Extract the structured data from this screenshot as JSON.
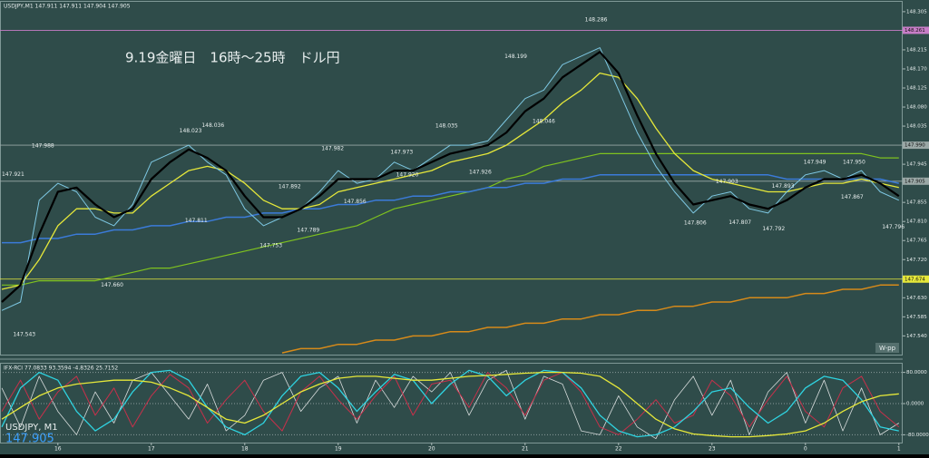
{
  "chart_data": [
    {
      "type": "line",
      "header": "USDJPY,M1  147.911 147.911 147.904 147.905",
      "title": "9.19金曜日　16時～25時　ドル円",
      "symbol": "USDJPY, M1",
      "price": "147.905",
      "marker": "W-pp",
      "categories": [
        null,
        null,
        null,
        "16",
        null,
        null,
        null,
        null,
        "17",
        null,
        null,
        null,
        null,
        "18",
        null,
        null,
        null,
        null,
        "19",
        null,
        null,
        null,
        null,
        "20",
        null,
        null,
        null,
        null,
        "21",
        null,
        null,
        null,
        null,
        "22",
        null,
        null,
        null,
        null,
        "23",
        null,
        null,
        null,
        null,
        "0",
        null,
        null,
        null,
        null,
        "1"
      ],
      "ylim": [
        147.498,
        148.324
      ],
      "yticks": [
        148.305,
        148.215,
        {
          "value": 148.17,
          "label": "148.170"
        },
        148.125,
        {
          "value": 148.08,
          "label": "148.080"
        },
        148.035,
        147.945,
        147.855,
        {
          "value": 147.81,
          "label": "147.810"
        },
        147.765,
        {
          "value": 147.72,
          "label": "147.720"
        },
        {
          "value": 147.63,
          "label": "147.630"
        },
        147.585,
        {
          "value": 147.54,
          "label": "147.540"
        }
      ],
      "levels": [
        {
          "value": 148.261,
          "label": "148.261",
          "color": "#c77dc7"
        },
        {
          "value": 147.99,
          "label": "147.990",
          "color": "#9aa8a6"
        },
        {
          "value": 147.905,
          "label": "147.905",
          "color": "#9aa8a6"
        },
        {
          "value": 147.674,
          "label": "147.674",
          "color": "#e6e83a"
        }
      ],
      "series": [
        {
          "color": "#7fc21f",
          "width": 1.2,
          "values": [
            147.66,
            147.66,
            147.67,
            147.67,
            147.67,
            147.67,
            147.68,
            147.69,
            147.7,
            147.7,
            147.71,
            147.72,
            147.73,
            147.74,
            147.75,
            147.76,
            147.77,
            147.78,
            147.79,
            147.8,
            147.82,
            147.84,
            147.85,
            147.86,
            147.87,
            147.88,
            147.89,
            147.91,
            147.92,
            147.94,
            147.95,
            147.96,
            147.97,
            147.97,
            147.97,
            147.97,
            147.97,
            147.97,
            147.97,
            147.97,
            147.97,
            147.97,
            147.97,
            147.97,
            147.97,
            147.97,
            147.97,
            147.96,
            147.96
          ]
        },
        {
          "color": "#d68a1a",
          "width": 1.5,
          "values": [
            null,
            null,
            null,
            null,
            null,
            null,
            null,
            null,
            null,
            null,
            null,
            null,
            null,
            null,
            null,
            147.5,
            147.51,
            147.51,
            147.52,
            147.52,
            147.53,
            147.53,
            147.54,
            147.54,
            147.55,
            147.55,
            147.56,
            147.56,
            147.57,
            147.57,
            147.58,
            147.58,
            147.59,
            147.59,
            147.6,
            147.6,
            147.61,
            147.61,
            147.62,
            147.62,
            147.63,
            147.63,
            147.63,
            147.64,
            147.64,
            147.65,
            147.65,
            147.66,
            147.66
          ]
        },
        {
          "color": "#3b7bd9",
          "width": 1.5,
          "values": [
            147.76,
            147.76,
            147.77,
            147.77,
            147.78,
            147.78,
            147.79,
            147.79,
            147.8,
            147.8,
            147.81,
            147.81,
            147.82,
            147.82,
            147.83,
            147.83,
            147.84,
            147.84,
            147.85,
            147.85,
            147.86,
            147.86,
            147.87,
            147.87,
            147.88,
            147.88,
            147.89,
            147.89,
            147.9,
            147.9,
            147.91,
            147.91,
            147.92,
            147.92,
            147.92,
            147.92,
            147.92,
            147.92,
            147.92,
            147.92,
            147.92,
            147.92,
            147.91,
            147.91,
            147.91,
            147.91,
            147.91,
            147.91,
            147.9
          ]
        },
        {
          "color": "#e6e83a",
          "width": 1.3,
          "values": [
            147.65,
            147.66,
            147.72,
            147.8,
            147.84,
            147.84,
            147.83,
            147.83,
            147.87,
            147.9,
            147.93,
            147.94,
            147.93,
            147.9,
            147.86,
            147.84,
            147.84,
            147.85,
            147.88,
            147.89,
            147.9,
            147.91,
            147.92,
            147.93,
            147.95,
            147.96,
            147.97,
            147.99,
            148.02,
            148.05,
            148.09,
            148.12,
            148.16,
            148.15,
            148.1,
            148.03,
            147.97,
            147.93,
            147.91,
            147.9,
            147.89,
            147.88,
            147.88,
            147.89,
            147.9,
            147.9,
            147.91,
            147.9,
            147.89
          ]
        },
        {
          "color": "#7ec8e3",
          "width": 1,
          "values": [
            147.6,
            147.62,
            147.86,
            147.9,
            147.88,
            147.82,
            147.8,
            147.85,
            147.95,
            147.97,
            147.99,
            147.95,
            147.92,
            147.84,
            147.8,
            147.82,
            147.84,
            147.88,
            147.93,
            147.9,
            147.91,
            147.95,
            147.93,
            147.96,
            147.99,
            147.99,
            148.0,
            148.05,
            148.1,
            148.12,
            148.18,
            148.2,
            148.22,
            148.12,
            148.02,
            147.94,
            147.88,
            147.83,
            147.87,
            147.88,
            147.84,
            147.83,
            147.88,
            147.92,
            147.93,
            147.91,
            147.93,
            147.88,
            147.86
          ]
        },
        {
          "color": "#000000",
          "width": 2.2,
          "values": [
            147.62,
            147.66,
            147.78,
            147.88,
            147.89,
            147.85,
            147.82,
            147.84,
            147.91,
            147.95,
            147.98,
            147.96,
            147.93,
            147.87,
            147.82,
            147.82,
            147.84,
            147.87,
            147.91,
            147.91,
            147.91,
            147.93,
            147.93,
            147.95,
            147.97,
            147.98,
            147.99,
            148.02,
            148.07,
            148.1,
            148.15,
            148.18,
            148.21,
            148.16,
            148.06,
            147.97,
            147.9,
            147.85,
            147.86,
            147.87,
            147.85,
            147.84,
            147.86,
            147.89,
            147.91,
            147.91,
            147.92,
            147.9,
            147.87
          ]
        }
      ],
      "annotations": [
        {
          "x": 2.2,
          "value": 147.988,
          "label": "147.988"
        },
        {
          "x": 0.6,
          "value": 147.921,
          "label": "147.921"
        },
        {
          "x": 10.1,
          "value": 148.023,
          "label": "148.023"
        },
        {
          "x": 11.3,
          "value": 148.036,
          "label": "148.036"
        },
        {
          "x": 17.7,
          "value": 147.982,
          "label": "147.982"
        },
        {
          "x": 21.4,
          "value": 147.973,
          "label": "147.973"
        },
        {
          "x": 23.8,
          "value": 148.035,
          "label": "148.035"
        },
        {
          "x": 27.5,
          "value": 148.199,
          "label": "148.199"
        },
        {
          "x": 31.8,
          "value": 148.286,
          "label": "148.286"
        },
        {
          "x": 29.0,
          "value": 148.046,
          "label": "148.046"
        },
        {
          "x": 15.4,
          "value": 147.892,
          "label": "147.892"
        },
        {
          "x": 21.7,
          "value": 147.92,
          "label": "147.920"
        },
        {
          "x": 25.6,
          "value": 147.926,
          "label": "147.926"
        },
        {
          "x": 18.9,
          "value": 147.856,
          "label": "147.856"
        },
        {
          "x": 10.4,
          "value": 147.811,
          "label": "147.811"
        },
        {
          "x": 16.4,
          "value": 147.789,
          "label": "147.789"
        },
        {
          "x": 14.4,
          "value": 147.753,
          "label": "147.753"
        },
        {
          "x": 5.9,
          "value": 147.66,
          "label": "147.660"
        },
        {
          "x": 1.2,
          "value": 147.543,
          "label": "147.543"
        },
        {
          "x": 37.1,
          "value": 147.806,
          "label": "147.806"
        },
        {
          "x": 39.5,
          "value": 147.807,
          "label": "147.807"
        },
        {
          "x": 41.3,
          "value": 147.792,
          "label": "147.792"
        },
        {
          "x": 38.8,
          "value": 147.903,
          "label": "147.903"
        },
        {
          "x": 41.8,
          "value": 147.893,
          "label": "147.893"
        },
        {
          "x": 43.5,
          "value": 147.949,
          "label": "147.949"
        },
        {
          "x": 45.6,
          "value": 147.95,
          "label": "147.950"
        },
        {
          "x": 45.5,
          "value": 147.867,
          "label": "147.867"
        },
        {
          "x": 47.7,
          "value": 147.796,
          "label": "147.796"
        }
      ]
    },
    {
      "type": "line",
      "title": "IFX-RCI 77.0833 93.3594 -4.8326 25.7152",
      "ylim": [
        -100,
        100
      ],
      "yticks": [
        {
          "value": 80,
          "label": "80.0000"
        },
        {
          "value": 0,
          "label": "0.0000"
        },
        {
          "value": -80,
          "label": "-80.0000"
        }
      ],
      "series": [
        {
          "color": "#d7dcdc",
          "width": 0.8,
          "values": [
            40,
            -60,
            70,
            -20,
            -80,
            30,
            -50,
            60,
            80,
            20,
            -40,
            50,
            -70,
            -30,
            60,
            80,
            -20,
            40,
            70,
            -50,
            60,
            -10,
            70,
            30,
            80,
            -30,
            60,
            85,
            -40,
            70,
            50,
            -70,
            -80,
            20,
            -60,
            -90,
            10,
            70,
            -30,
            60,
            -80,
            30,
            80,
            -50,
            60,
            -70,
            40,
            -80,
            -50
          ]
        },
        {
          "color": "#c8304a",
          "width": 1,
          "values": [
            -20,
            60,
            -40,
            30,
            70,
            -30,
            40,
            -60,
            20,
            75,
            40,
            -50,
            10,
            60,
            -20,
            -70,
            30,
            70,
            10,
            -40,
            20,
            70,
            -30,
            50,
            60,
            -10,
            80,
            40,
            -30,
            60,
            80,
            30,
            -60,
            -80,
            -40,
            10,
            -50,
            -30,
            60,
            20,
            -60,
            10,
            70,
            -20,
            -60,
            40,
            70,
            -20,
            -60
          ]
        },
        {
          "color": "#2fd3e0",
          "width": 1.3,
          "values": [
            -60,
            40,
            80,
            60,
            -20,
            -70,
            -40,
            30,
            80,
            85,
            60,
            -10,
            -60,
            -80,
            -50,
            20,
            70,
            80,
            40,
            -20,
            30,
            75,
            60,
            0,
            50,
            85,
            70,
            20,
            60,
            85,
            80,
            40,
            -30,
            -70,
            -85,
            -80,
            -60,
            -20,
            30,
            40,
            -10,
            -50,
            -20,
            40,
            70,
            60,
            10,
            -60,
            -70
          ]
        },
        {
          "color": "#e6e83a",
          "width": 1.3,
          "values": [
            -40,
            -10,
            20,
            40,
            50,
            55,
            60,
            60,
            55,
            40,
            20,
            -10,
            -40,
            -50,
            -30,
            0,
            30,
            50,
            65,
            70,
            70,
            65,
            60,
            60,
            65,
            70,
            72,
            75,
            78,
            80,
            80,
            78,
            70,
            40,
            0,
            -40,
            -65,
            -78,
            -82,
            -85,
            -85,
            -82,
            -78,
            -70,
            -50,
            -20,
            5,
            20,
            25
          ]
        }
      ]
    }
  ]
}
